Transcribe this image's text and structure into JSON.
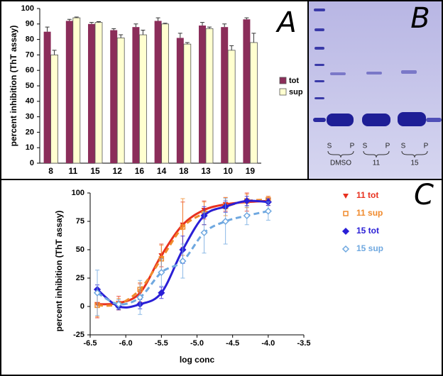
{
  "chart_data": [
    {
      "type": "bar",
      "annotation": "A",
      "ylabel": "percent inhibition (ThT assay)",
      "categories": [
        "8",
        "11",
        "15",
        "12",
        "16",
        "14",
        "18",
        "13",
        "10",
        "19"
      ],
      "series": [
        {
          "name": "tot",
          "color": "#8b2d5a",
          "values": [
            85,
            92,
            90,
            86,
            88,
            92,
            81,
            89,
            88,
            93
          ],
          "errors": [
            3,
            1,
            1,
            1,
            2,
            2,
            3,
            2,
            2,
            1
          ]
        },
        {
          "name": "sup",
          "color": "#ffffd0",
          "values": [
            70,
            94,
            91,
            81,
            83,
            90,
            77,
            87,
            73,
            78
          ],
          "errors": [
            3,
            0.5,
            0.5,
            2,
            3,
            0.5,
            1,
            1,
            3,
            6
          ]
        }
      ],
      "ylim": [
        0,
        100
      ],
      "yticks": [
        0,
        10,
        20,
        30,
        40,
        50,
        60,
        70,
        80,
        90,
        100
      ],
      "legend": "right"
    },
    {
      "type": "scatter",
      "annotation": "C",
      "xlabel": "log conc",
      "ylabel": "percent inhibition (ThT assay)",
      "x": [
        -6.4,
        -6.1,
        -5.8,
        -5.5,
        -5.2,
        -4.9,
        -4.6,
        -4.3,
        -4.0
      ],
      "series": [
        {
          "name": "11 tot",
          "color": "#e8311f",
          "marker": "triangle",
          "dashed": false,
          "values": [
            2,
            3,
            12,
            45,
            72,
            85,
            90,
            92,
            93
          ],
          "errors": [
            12,
            6,
            8,
            10,
            20,
            8,
            6,
            8,
            4
          ]
        },
        {
          "name": "11 sup",
          "color": "#f08a2c",
          "marker": "square",
          "dashed": true,
          "values": [
            1,
            2,
            15,
            42,
            70,
            82,
            88,
            93,
            94
          ],
          "errors": [
            10,
            5,
            6,
            12,
            25,
            10,
            8,
            6,
            3
          ]
        },
        {
          "name": "15 tot",
          "color": "#2a1fd6",
          "marker": "diamond",
          "dashed": false,
          "values": [
            15,
            0,
            2,
            12,
            50,
            80,
            88,
            93,
            92
          ],
          "errors": [
            4,
            3,
            4,
            5,
            12,
            8,
            5,
            4,
            3
          ]
        },
        {
          "name": "15 sup",
          "color": "#6fa8e0",
          "marker": "open-diamond",
          "dashed": true,
          "values": [
            12,
            2,
            8,
            30,
            40,
            65,
            75,
            80,
            84
          ],
          "errors": [
            20,
            4,
            15,
            12,
            15,
            18,
            20,
            8,
            8
          ]
        }
      ],
      "xlim": [
        -6.5,
        -3.5
      ],
      "xticks": [
        -6.5,
        {
          "value": -6,
          "label": "-6.0"
        },
        -5.5,
        {
          "value": -5,
          "label": "-5.0"
        },
        -4.5,
        {
          "value": -4,
          "label": "-4.0"
        },
        -3.5
      ],
      "ylim": [
        -25,
        100
      ],
      "yticks": [
        -25,
        0,
        25,
        50,
        75,
        100
      ],
      "legend": "right"
    }
  ],
  "gel": {
    "label": "B",
    "groups": [
      {
        "name": "DMSO",
        "lanes": [
          "S",
          "P"
        ]
      },
      {
        "name": "11",
        "lanes": [
          "S",
          "P"
        ]
      },
      {
        "name": "15",
        "lanes": [
          "S",
          "P"
        ]
      }
    ]
  }
}
